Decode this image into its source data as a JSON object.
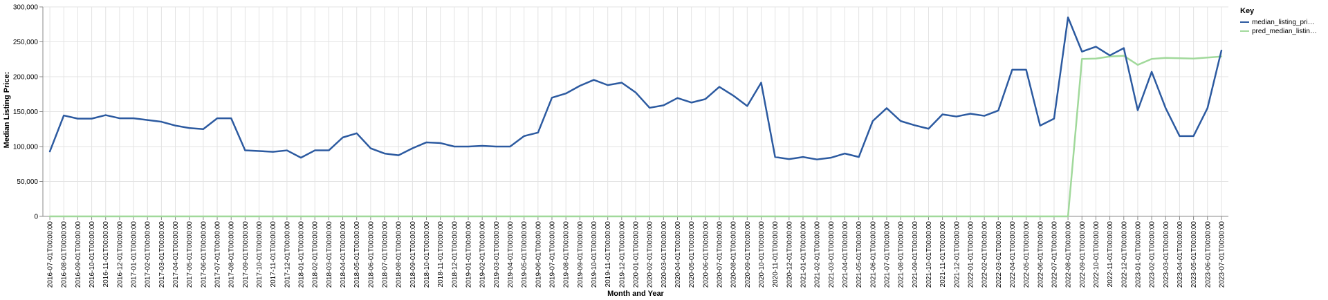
{
  "chart_data": {
    "type": "line",
    "title": "",
    "xlabel": "Month and Year",
    "ylabel": "Median Listing Price:",
    "ylim": [
      0,
      300000
    ],
    "yticks": [
      0,
      50000,
      100000,
      150000,
      200000,
      250000,
      300000
    ],
    "ytick_labels": [
      "0",
      "50,000",
      "100,000",
      "150,000",
      "200,000",
      "250,000",
      "300,000"
    ],
    "grid": true,
    "legend": {
      "title": "Key",
      "position": "top-right",
      "items": [
        {
          "label": "median_listing_pri…",
          "color": "#2c5aa0"
        },
        {
          "label": "pred_median_listin…",
          "color": "#a1d99b"
        }
      ]
    },
    "categories": [
      "2016-07-01T00:00:00",
      "2016-08-01T00:00:00",
      "2016-09-01T00:00:00",
      "2016-10-01T00:00:00",
      "2016-11-01T00:00:00",
      "2016-12-01T00:00:00",
      "2017-01-01T00:00:00",
      "2017-02-01T00:00:00",
      "2017-03-01T00:00:00",
      "2017-04-01T00:00:00",
      "2017-05-01T00:00:00",
      "2017-06-01T00:00:00",
      "2017-07-01T00:00:00",
      "2017-08-01T00:00:00",
      "2017-09-01T00:00:00",
      "2017-10-01T00:00:00",
      "2017-11-01T00:00:00",
      "2017-12-01T00:00:00",
      "2018-01-01T00:00:00",
      "2018-02-01T00:00:00",
      "2018-03-01T00:00:00",
      "2018-04-01T00:00:00",
      "2018-05-01T00:00:00",
      "2018-06-01T00:00:00",
      "2018-07-01T00:00:00",
      "2018-08-01T00:00:00",
      "2018-09-01T00:00:00",
      "2018-10-01T00:00:00",
      "2018-11-01T00:00:00",
      "2018-12-01T00:00:00",
      "2019-01-01T00:00:00",
      "2019-02-01T00:00:00",
      "2019-03-01T00:00:00",
      "2019-04-01T00:00:00",
      "2019-05-01T00:00:00",
      "2019-06-01T00:00:00",
      "2019-07-01T00:00:00",
      "2019-08-01T00:00:00",
      "2019-09-01T00:00:00",
      "2019-10-01T00:00:00",
      "2019-11-01T00:00:00",
      "2019-12-01T00:00:00",
      "2020-01-01T00:00:00",
      "2020-02-01T00:00:00",
      "2020-03-01T00:00:00",
      "2020-04-01T00:00:00",
      "2020-05-01T00:00:00",
      "2020-06-01T00:00:00",
      "2020-07-01T00:00:00",
      "2020-08-01T00:00:00",
      "2020-09-01T00:00:00",
      "2020-10-01T00:00:00",
      "2020-11-01T00:00:00",
      "2020-12-01T00:00:00",
      "2021-01-01T00:00:00",
      "2021-02-01T00:00:00",
      "2021-03-01T00:00:00",
      "2021-04-01T00:00:00",
      "2021-05-01T00:00:00",
      "2021-06-01T00:00:00",
      "2021-07-01T00:00:00",
      "2021-08-01T00:00:00",
      "2021-09-01T00:00:00",
      "2021-10-01T00:00:00",
      "2021-11-01T00:00:00",
      "2021-12-01T00:00:00",
      "2022-01-01T00:00:00",
      "2022-02-01T00:00:00",
      "2022-03-01T00:00:00",
      "2022-04-01T00:00:00",
      "2022-05-01T00:00:00",
      "2022-06-01T00:00:00",
      "2022-07-01T00:00:00",
      "2022-08-01T00:00:00",
      "2022-09-01T00:00:00",
      "2022-10-01T00:00:00",
      "2022-11-01T00:00:00",
      "2022-12-01T00:00:00",
      "2023-01-01T00:00:00",
      "2023-02-01T00:00:00",
      "2023-03-01T00:00:00",
      "2023-04-01T00:00:00",
      "2023-05-01T00:00:00",
      "2023-06-01T00:00:00",
      "2023-07-01T00:00:00"
    ],
    "series": [
      {
        "name": "median_listing_price",
        "color": "#2c5aa0",
        "values": [
          93000,
          144500,
          140000,
          140000,
          145000,
          140500,
          140500,
          138000,
          135500,
          130000,
          126500,
          125000,
          140500,
          140500,
          94500,
          93500,
          92500,
          94500,
          84000,
          94500,
          94500,
          113000,
          119000,
          97500,
          90000,
          87500,
          97500,
          106000,
          105000,
          100000,
          100000,
          101000,
          100000,
          100000,
          115000,
          120000,
          170000,
          176000,
          187000,
          195500,
          188000,
          191500,
          177500,
          155500,
          159000,
          169500,
          163000,
          168000,
          185500,
          173000,
          158000,
          191500,
          85000,
          82000,
          85000,
          81500,
          84000,
          90000,
          85000,
          136500,
          155000,
          136500,
          130500,
          125500,
          146000,
          143000,
          147000,
          144000,
          151500,
          210000,
          210000,
          130000,
          140000,
          285000,
          236000,
          243000,
          230500,
          241000,
          152000,
          207000,
          155000,
          115000,
          115000,
          155000,
          237500
        ]
      },
      {
        "name": "pred_median_listing_price",
        "color": "#a1d99b",
        "values": [
          0,
          0,
          0,
          0,
          0,
          0,
          0,
          0,
          0,
          0,
          0,
          0,
          0,
          0,
          0,
          0,
          0,
          0,
          0,
          0,
          0,
          0,
          0,
          0,
          0,
          0,
          0,
          0,
          0,
          0,
          0,
          0,
          0,
          0,
          0,
          0,
          0,
          0,
          0,
          0,
          0,
          0,
          0,
          0,
          0,
          0,
          0,
          0,
          0,
          0,
          0,
          0,
          0,
          0,
          0,
          0,
          0,
          0,
          0,
          0,
          0,
          0,
          0,
          0,
          0,
          0,
          0,
          0,
          0,
          0,
          0,
          0,
          0,
          0,
          225500,
          226000,
          229000,
          230000,
          217000,
          225500,
          227000,
          226500,
          226000,
          227500,
          229000
        ]
      }
    ]
  }
}
